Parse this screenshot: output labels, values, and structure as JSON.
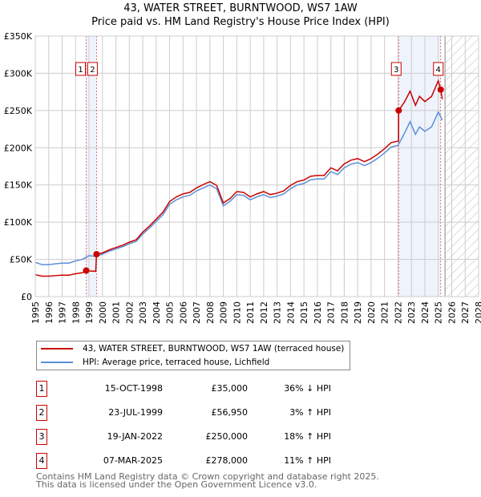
{
  "chart_data": {
    "type": "line",
    "title": "43, WATER STREET, BURNTWOOD, WS7 1AW",
    "subtitle": "Price paid vs. HM Land Registry's House Price Index (HPI)",
    "xlim": [
      1995,
      2028
    ],
    "ylim": [
      0,
      350000
    ],
    "y_ticks": [
      {
        "v": 0,
        "l": "£0"
      },
      {
        "v": 50000,
        "l": "£50K"
      },
      {
        "v": 100000,
        "l": "£100K"
      },
      {
        "v": 150000,
        "l": "£150K"
      },
      {
        "v": 200000,
        "l": "£200K"
      },
      {
        "v": 250000,
        "l": "£250K"
      },
      {
        "v": 300000,
        "l": "£300K"
      },
      {
        "v": 350000,
        "l": "£350K"
      }
    ],
    "x_ticks": [
      "1995",
      "1996",
      "1997",
      "1998",
      "1999",
      "2000",
      "2001",
      "2002",
      "2003",
      "2004",
      "2005",
      "2006",
      "2007",
      "2008",
      "2009",
      "2010",
      "2011",
      "2012",
      "2013",
      "2014",
      "2015",
      "2016",
      "2017",
      "2018",
      "2019",
      "2020",
      "2021",
      "2022",
      "2023",
      "2024",
      "2025",
      "2026",
      "2027",
      "2028"
    ],
    "grid": true,
    "shaded_ranges": [
      [
        1998.79,
        1999.56
      ],
      [
        2022.05,
        2025.18
      ]
    ],
    "forecast_hatch_from": 2025.5,
    "series": [
      {
        "name": "43, WATER STREET, BURNTWOOD, WS7 1AW (terraced house)",
        "color": "#cc0000",
        "x": [
          1995,
          1995.5,
          1996,
          1996.5,
          1997,
          1997.5,
          1998,
          1998.5,
          1998.79,
          1999,
          1999.5,
          1999.56,
          2000,
          2000.5,
          2001,
          2001.5,
          2002,
          2002.5,
          2003,
          2003.5,
          2004,
          2004.5,
          2005,
          2005.5,
          2006,
          2006.5,
          2007,
          2007.5,
          2008,
          2008.5,
          2009,
          2009.5,
          2010,
          2010.5,
          2011,
          2011.5,
          2012,
          2012.5,
          2013,
          2013.5,
          2014,
          2014.5,
          2015,
          2015.5,
          2016,
          2016.5,
          2017,
          2017.5,
          2018,
          2018.5,
          2019,
          2019.5,
          2020,
          2020.5,
          2021,
          2021.5,
          2022.04,
          2022.05,
          2022.5,
          2022.9,
          2023.3,
          2023.6,
          2024,
          2024.5,
          2025,
          2025.18,
          2025.3
        ],
        "y": [
          29400,
          27500,
          27500,
          28200,
          28800,
          28800,
          30700,
          32000,
          35000,
          34500,
          34000,
          56950,
          58700,
          62800,
          65900,
          69000,
          73100,
          76200,
          86500,
          94800,
          104000,
          113300,
          127700,
          133900,
          138000,
          140000,
          146000,
          150400,
          154500,
          149400,
          125700,
          131800,
          141100,
          140000,
          133900,
          138000,
          141100,
          137000,
          139000,
          142100,
          149400,
          154500,
          156600,
          161700,
          162700,
          162700,
          173000,
          169000,
          178200,
          183300,
          185400,
          181300,
          185400,
          191600,
          198800,
          207000,
          209000,
          250000,
          262000,
          276000,
          257000,
          269000,
          262000,
          269000,
          290000,
          278000,
          265000
        ]
      },
      {
        "name": "HPI: Average price, terraced house, Lichfield",
        "color": "#5b8fd6",
        "x": [
          1995,
          1995.5,
          1996,
          1996.5,
          1997,
          1997.5,
          1998,
          1998.5,
          1999,
          1999.5,
          2000,
          2000.5,
          2001,
          2001.5,
          2002,
          2002.5,
          2003,
          2003.5,
          2004,
          2004.5,
          2005,
          2005.5,
          2006,
          2006.5,
          2007,
          2007.5,
          2008,
          2008.5,
          2009,
          2009.5,
          2010,
          2010.5,
          2011,
          2011.5,
          2012,
          2012.5,
          2013,
          2013.5,
          2014,
          2014.5,
          2015,
          2015.5,
          2016,
          2016.5,
          2017,
          2017.5,
          2018,
          2018.5,
          2019,
          2019.5,
          2020,
          2020.5,
          2021,
          2021.5,
          2022,
          2022.5,
          2022.9,
          2023.3,
          2023.6,
          2024,
          2024.5,
          2025,
          2025.3
        ],
        "y": [
          46000,
          43000,
          43000,
          44000,
          45000,
          45000,
          48000,
          50000,
          55000,
          54000,
          57000,
          61000,
          64000,
          67000,
          71000,
          74000,
          84000,
          92000,
          101000,
          110000,
          124000,
          130000,
          134000,
          136000,
          142000,
          146000,
          150000,
          145000,
          122000,
          128000,
          137000,
          136000,
          130000,
          134000,
          137000,
          133000,
          135000,
          138000,
          145000,
          150000,
          152000,
          157000,
          158000,
          158000,
          168000,
          164000,
          173000,
          178000,
          180000,
          176000,
          180000,
          186000,
          193000,
          201000,
          203000,
          220000,
          235000,
          218000,
          228000,
          222000,
          228000,
          248000,
          237000
        ]
      }
    ],
    "sales": [
      {
        "n": "1",
        "x": 1998.79,
        "y": 35000,
        "date": "15-OCT-1998",
        "price": "£35,000",
        "hpi": "36% ↓ HPI"
      },
      {
        "n": "2",
        "x": 1999.56,
        "y": 56950,
        "date": "23-JUL-1999",
        "price": "£56,950",
        "hpi": "3% ↑ HPI"
      },
      {
        "n": "3",
        "x": 2022.05,
        "y": 250000,
        "date": "19-JAN-2022",
        "price": "£250,000",
        "hpi": "18% ↑ HPI"
      },
      {
        "n": "4",
        "x": 2025.18,
        "y": 278000,
        "date": "07-MAR-2025",
        "price": "£278,000",
        "hpi": "11% ↑ HPI"
      }
    ]
  },
  "footer": {
    "line1": "Contains HM Land Registry data © Crown copyright and database right 2025.",
    "line2": "This data is licensed under the Open Government Licence v3.0."
  }
}
